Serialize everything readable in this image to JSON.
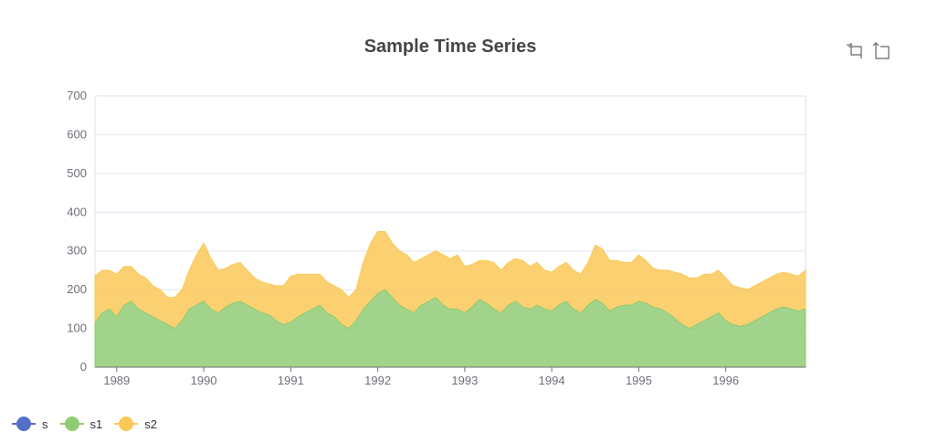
{
  "chart_data": {
    "type": "area",
    "title": "Sample Time Series",
    "xlabel": "",
    "ylabel": "",
    "ylim": [
      0,
      700
    ],
    "y_ticks": [
      "0",
      "100",
      "200",
      "300",
      "400",
      "500",
      "600",
      "700"
    ],
    "x_ticks": [
      "1989",
      "1990",
      "1991",
      "1992",
      "1993",
      "1994",
      "1995",
      "1996"
    ],
    "x_range": [
      "1988-10",
      "1996-12"
    ],
    "grid": true,
    "legend_position": "bottom-left",
    "stacked": true,
    "x": [
      "1988-10",
      "1988-11",
      "1988-12",
      "1989-01",
      "1989-02",
      "1989-03",
      "1989-04",
      "1989-05",
      "1989-06",
      "1989-07",
      "1989-08",
      "1989-09",
      "1989-10",
      "1989-11",
      "1989-12",
      "1990-01",
      "1990-02",
      "1990-03",
      "1990-04",
      "1990-05",
      "1990-06",
      "1990-07",
      "1990-08",
      "1990-09",
      "1990-10",
      "1990-11",
      "1990-12",
      "1991-01",
      "1991-02",
      "1991-03",
      "1991-04",
      "1991-05",
      "1991-06",
      "1991-07",
      "1991-08",
      "1991-09",
      "1991-10",
      "1991-11",
      "1991-12",
      "1992-01",
      "1992-02",
      "1992-03",
      "1992-04",
      "1992-05",
      "1992-06",
      "1992-07",
      "1992-08",
      "1992-09",
      "1992-10",
      "1992-11",
      "1992-12",
      "1993-01",
      "1993-02",
      "1993-03",
      "1993-04",
      "1993-05",
      "1993-06",
      "1993-07",
      "1993-08",
      "1993-09",
      "1993-10",
      "1993-11",
      "1993-12",
      "1994-01",
      "1994-02",
      "1994-03",
      "1994-04",
      "1994-05",
      "1994-06",
      "1994-07",
      "1994-08",
      "1994-09",
      "1994-10",
      "1994-11",
      "1994-12",
      "1995-01",
      "1995-02",
      "1995-03",
      "1995-04",
      "1995-05",
      "1995-06",
      "1995-07",
      "1995-08",
      "1995-09",
      "1995-10",
      "1995-11",
      "1995-12",
      "1996-01",
      "1996-02",
      "1996-03",
      "1996-04",
      "1996-05",
      "1996-06",
      "1996-07",
      "1996-08",
      "1996-09",
      "1996-10",
      "1996-11",
      "1996-12"
    ],
    "series": [
      {
        "name": "s",
        "color": "#5470c6",
        "values": [
          0,
          0,
          0,
          0,
          0,
          0,
          0,
          0,
          0,
          0,
          0,
          0,
          0,
          0,
          0,
          0,
          0,
          0,
          0,
          0,
          0,
          0,
          0,
          0,
          0,
          0,
          0,
          0,
          0,
          0,
          0,
          0,
          0,
          0,
          0,
          0,
          0,
          0,
          0,
          0,
          0,
          0,
          0,
          0,
          0,
          0,
          0,
          0,
          0,
          0,
          0,
          0,
          0,
          0,
          0,
          0,
          0,
          0,
          0,
          0,
          0,
          0,
          0,
          0,
          0,
          0,
          0,
          0,
          0,
          0,
          0,
          0,
          0,
          0,
          0,
          0,
          0,
          0,
          0,
          0,
          0,
          0,
          0,
          0,
          0,
          0,
          0,
          0,
          0,
          0,
          0,
          0,
          0,
          0,
          0,
          0,
          0,
          0,
          0
        ]
      },
      {
        "name": "s1",
        "color": "#91cc75",
        "values": [
          115,
          140,
          150,
          130,
          160,
          170,
          150,
          140,
          130,
          120,
          110,
          100,
          120,
          150,
          160,
          170,
          150,
          140,
          155,
          165,
          170,
          160,
          150,
          140,
          135,
          120,
          110,
          115,
          130,
          140,
          150,
          160,
          140,
          130,
          110,
          100,
          120,
          150,
          170,
          190,
          200,
          180,
          160,
          150,
          140,
          160,
          170,
          180,
          160,
          150,
          150,
          140,
          155,
          175,
          165,
          150,
          140,
          160,
          170,
          155,
          150,
          160,
          150,
          145,
          160,
          170,
          150,
          140,
          160,
          175,
          165,
          145,
          155,
          160,
          160,
          170,
          165,
          155,
          150,
          140,
          125,
          110,
          100,
          110,
          120,
          130,
          140,
          120,
          110,
          105,
          110,
          120,
          130,
          140,
          150,
          155,
          150,
          145,
          150
        ]
      },
      {
        "name": "s2",
        "color": "#fac858",
        "values": [
          120,
          110,
          100,
          110,
          100,
          90,
          90,
          90,
          80,
          80,
          70,
          80,
          80,
          100,
          130,
          150,
          130,
          110,
          100,
          100,
          100,
          90,
          80,
          80,
          80,
          90,
          100,
          120,
          110,
          100,
          90,
          80,
          80,
          80,
          90,
          80,
          80,
          120,
          150,
          160,
          150,
          140,
          140,
          140,
          130,
          120,
          120,
          120,
          130,
          130,
          140,
          120,
          110,
          100,
          110,
          120,
          110,
          110,
          110,
          120,
          110,
          110,
          100,
          100,
          100,
          100,
          100,
          100,
          110,
          140,
          140,
          130,
          120,
          110,
          110,
          120,
          110,
          100,
          100,
          110,
          120,
          130,
          130,
          120,
          120,
          110,
          110,
          110,
          100,
          100,
          90,
          90,
          90,
          90,
          90,
          90,
          90,
          90,
          100
        ]
      }
    ]
  },
  "toolbox": {
    "zoom_icon": "data-zoom-icon",
    "reset_icon": "zoom-reset-icon"
  }
}
